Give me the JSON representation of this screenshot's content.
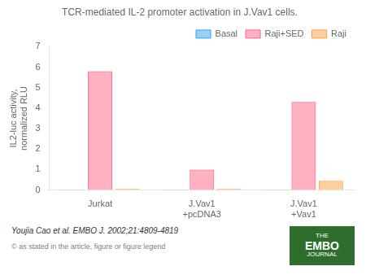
{
  "chart_data": {
    "type": "bar",
    "title": "TCR-mediated IL-2 promoter activation in J.Vav1 cells.",
    "ylabel": "IL2-luc activity,\nnormalized RLU",
    "categories": [
      "Jurkat",
      "J.Vav1\n+pcDNA3",
      "J.Vav1\n+Vav1"
    ],
    "series": [
      {
        "name": "Basal",
        "values": [
          0.02,
          0.02,
          0.02
        ]
      },
      {
        "name": "Raji+SED",
        "values": [
          5.8,
          1.0,
          4.3
        ]
      },
      {
        "name": "Raji",
        "values": [
          0.05,
          0.05,
          0.45
        ]
      }
    ],
    "ylim": [
      0,
      7
    ],
    "yticks": [
      0,
      1,
      2,
      3,
      4,
      5,
      6,
      7
    ],
    "grid": false,
    "legend": "upper right",
    "annotations": [
      "Youjia Cao et al. EMBO J. 2002;21:4809-4819",
      "© as stated in the article, figure or figure legend",
      "THE",
      "EMBO",
      "JOURNAL"
    ]
  }
}
